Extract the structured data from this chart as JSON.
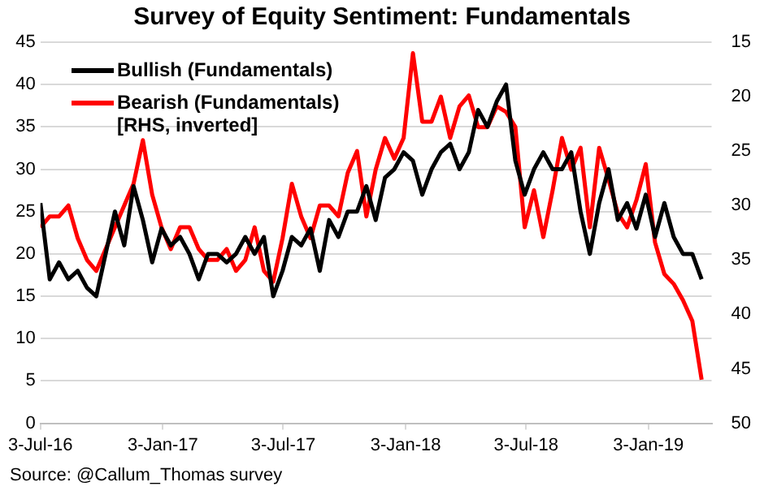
{
  "chart_data": {
    "type": "line",
    "title": "Survey of Equity Sentiment: Fundamentals",
    "x": [
      "2016-07-03",
      "2016-07-17",
      "2016-07-31",
      "2016-08-14",
      "2016-08-28",
      "2016-09-11",
      "2016-09-25",
      "2016-10-09",
      "2016-10-23",
      "2016-11-06",
      "2016-11-20",
      "2016-12-04",
      "2016-12-18",
      "2017-01-01",
      "2017-01-15",
      "2017-01-29",
      "2017-02-12",
      "2017-02-26",
      "2017-03-12",
      "2017-03-26",
      "2017-04-09",
      "2017-04-23",
      "2017-05-07",
      "2017-05-21",
      "2017-06-04",
      "2017-06-18",
      "2017-07-02",
      "2017-07-16",
      "2017-07-30",
      "2017-08-13",
      "2017-08-27",
      "2017-09-10",
      "2017-09-24",
      "2017-10-08",
      "2017-10-22",
      "2017-11-05",
      "2017-11-19",
      "2017-12-03",
      "2017-12-17",
      "2017-12-31",
      "2018-01-14",
      "2018-01-28",
      "2018-02-11",
      "2018-02-25",
      "2018-03-11",
      "2018-03-25",
      "2018-04-08",
      "2018-04-22",
      "2018-05-06",
      "2018-05-20",
      "2018-06-03",
      "2018-06-17",
      "2018-07-01",
      "2018-07-15",
      "2018-07-29",
      "2018-08-12",
      "2018-08-26",
      "2018-09-09",
      "2018-09-23",
      "2018-10-07",
      "2018-10-21",
      "2018-11-04",
      "2018-11-18",
      "2018-12-02",
      "2018-12-16",
      "2018-12-30",
      "2019-01-13",
      "2019-01-27",
      "2019-02-10",
      "2019-02-24",
      "2019-03-10",
      "2019-03-24"
    ],
    "series": [
      {
        "name": "Bullish (Fundamentals)",
        "color": "#000000",
        "values": [
          26,
          17,
          19,
          17,
          18,
          16,
          15,
          20,
          25,
          21,
          28,
          24,
          19,
          23,
          21,
          22,
          20,
          17,
          20,
          20,
          19,
          20,
          22,
          20,
          22,
          15,
          18,
          22,
          21,
          23,
          18,
          24,
          22,
          25,
          25,
          28,
          24,
          29,
          30,
          32,
          31,
          27,
          30,
          32,
          33,
          30,
          32,
          37,
          35,
          38,
          40,
          31,
          27,
          30,
          32,
          30,
          30,
          32,
          25,
          20,
          26,
          30,
          24,
          26,
          23,
          27,
          22,
          26,
          22,
          20,
          20,
          17
        ]
      },
      {
        "name": "Bearish (Fundamentals)\n[RHS, inverted]",
        "color": "#ff0000",
        "axis": "y2",
        "values": [
          32,
          31,
          31,
          30,
          33,
          35,
          36,
          34,
          32,
          30,
          28,
          24,
          29,
          32,
          34,
          32,
          32,
          34,
          35,
          35,
          34,
          36,
          35,
          32,
          36,
          37,
          33,
          28,
          31,
          33,
          30,
          30,
          31,
          27,
          25,
          31,
          26.7,
          23.8,
          25.7,
          23.8,
          16,
          22.3,
          22.3,
          20,
          23.8,
          20.9,
          19.9,
          22.8,
          22.8,
          20.9,
          21.4,
          22.8,
          32,
          28.6,
          32.9,
          28.6,
          23.8,
          26.7,
          24.7,
          32,
          24.7,
          27.6,
          30.7,
          32,
          29.5,
          26.2,
          33.4,
          36.3,
          37.2,
          38.7,
          40.6,
          46
        ]
      }
    ],
    "xlim": [
      "2016-07-03",
      "2019-04-08"
    ],
    "xticks": [
      {
        "value": "2016-07-03",
        "label": "3-Jul-16"
      },
      {
        "value": "2017-01-03",
        "label": "3-Jan-17"
      },
      {
        "value": "2017-07-03",
        "label": "3-Jul-17"
      },
      {
        "value": "2018-01-03",
        "label": "3-Jan-18"
      },
      {
        "value": "2018-07-03",
        "label": "3-Jul-18"
      },
      {
        "value": "2019-01-03",
        "label": "3-Jan-19"
      }
    ],
    "ylim": [
      0,
      45
    ],
    "yticks": [
      0,
      5,
      10,
      15,
      20,
      25,
      30,
      35,
      40,
      45
    ],
    "y2lim": [
      50,
      15
    ],
    "y2ticks": [
      15,
      20,
      25,
      30,
      35,
      40,
      45,
      50
    ],
    "grid": "y",
    "legend": "top left",
    "marker": "none",
    "line_style": "solid",
    "annotations": [
      "Source: @Callum_Thomas survey"
    ]
  }
}
